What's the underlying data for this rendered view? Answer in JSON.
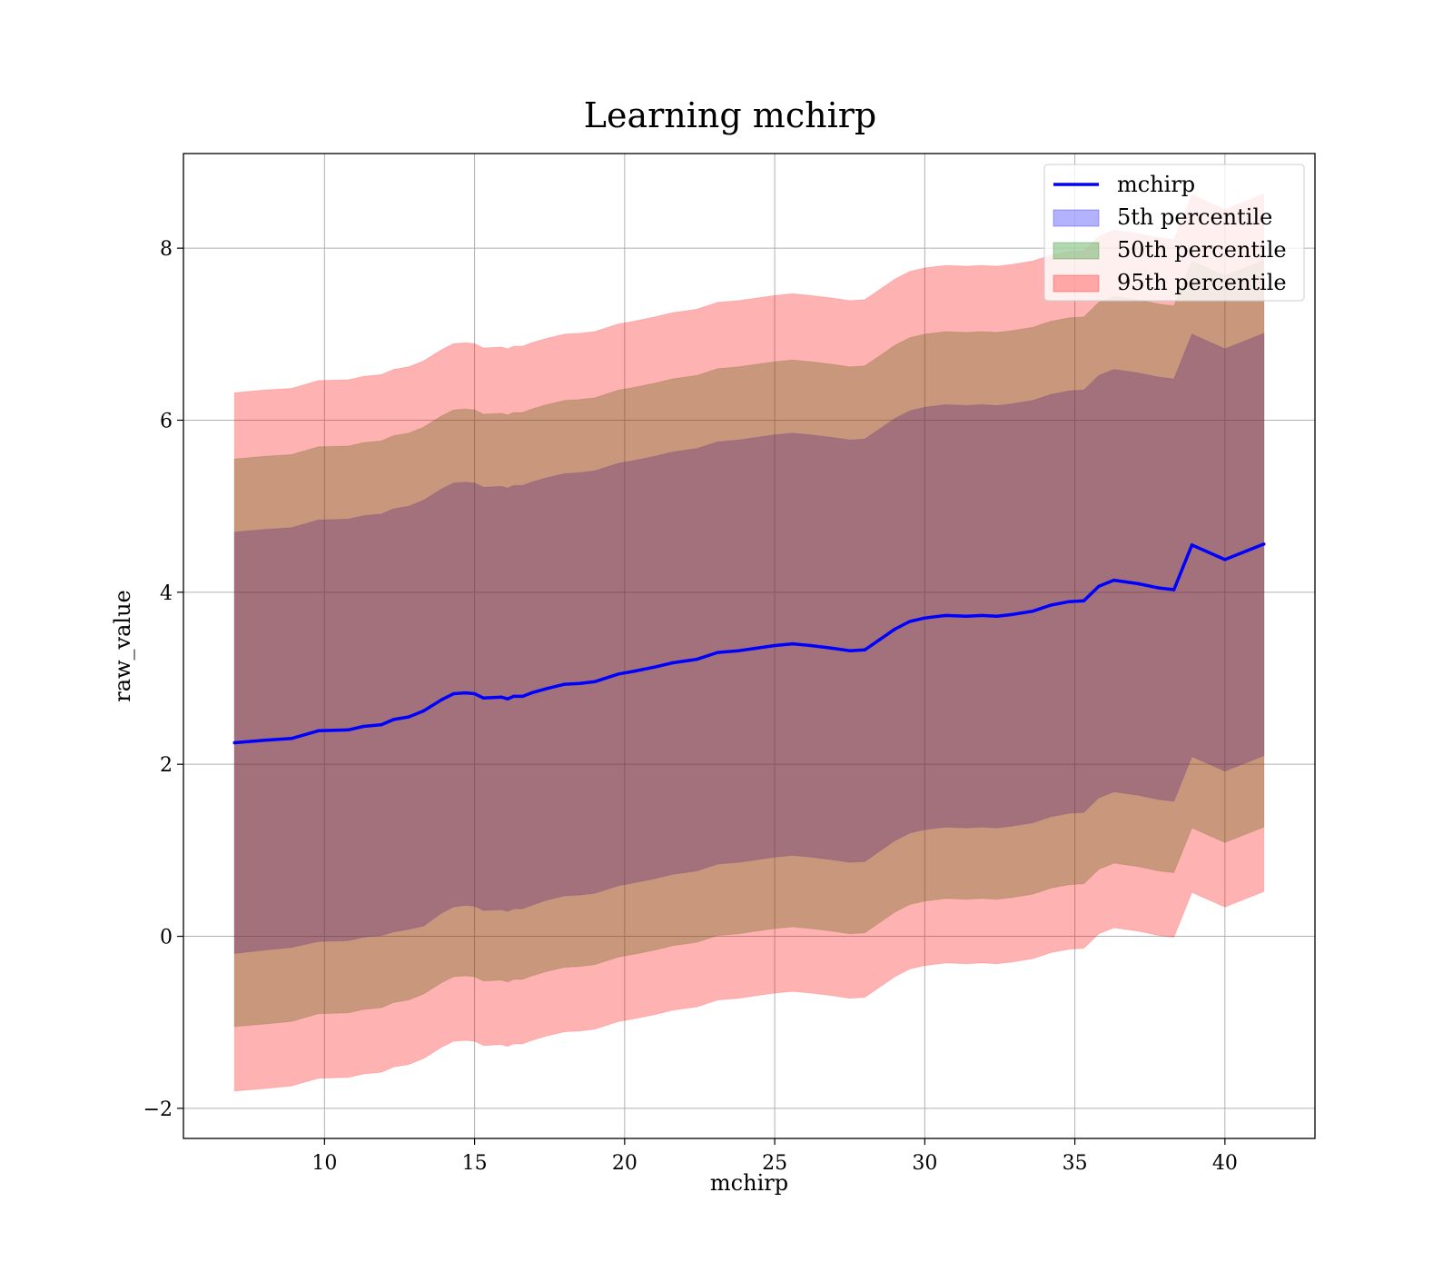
{
  "chart_data": {
    "type": "line",
    "title": "Learning mchirp",
    "xlabel": "mchirp",
    "ylabel": "raw_value",
    "xlim": [
      5.3,
      43.0
    ],
    "ylim": [
      -2.35,
      9.1
    ],
    "xticks": [
      10,
      15,
      20,
      25,
      30,
      35,
      40
    ],
    "yticks": [
      -2,
      0,
      2,
      4,
      6,
      8
    ],
    "xtick_labels": [
      "10",
      "15",
      "20",
      "25",
      "30",
      "35",
      "40"
    ],
    "ytick_labels": [
      "−2",
      "0",
      "2",
      "4",
      "6",
      "8"
    ],
    "grid": true,
    "legend_position": "top-right",
    "x": [
      7.0,
      8.0,
      8.9,
      9.8,
      10.8,
      11.3,
      11.9,
      12.3,
      12.8,
      13.3,
      13.9,
      14.3,
      14.7,
      15.0,
      15.3,
      15.9,
      16.1,
      16.3,
      16.6,
      16.9,
      17.4,
      18.0,
      18.5,
      19.0,
      19.8,
      20.3,
      21.0,
      21.6,
      22.4,
      23.1,
      23.8,
      24.4,
      25.0,
      25.6,
      26.2,
      26.9,
      27.5,
      28.0,
      28.5,
      29.0,
      29.5,
      30.0,
      30.7,
      31.4,
      31.9,
      32.4,
      32.9,
      33.6,
      34.2,
      34.8,
      35.3,
      35.8,
      36.3,
      37.1,
      37.8,
      38.3,
      38.9,
      40.0,
      41.3
    ],
    "series": [
      {
        "name": "mchirp",
        "role": "line",
        "color": "#0000ff",
        "values": [
          2.25,
          2.28,
          2.3,
          2.39,
          2.4,
          2.44,
          2.46,
          2.52,
          2.55,
          2.62,
          2.75,
          2.82,
          2.83,
          2.82,
          2.77,
          2.78,
          2.76,
          2.79,
          2.79,
          2.83,
          2.88,
          2.93,
          2.94,
          2.96,
          3.05,
          3.08,
          3.13,
          3.18,
          3.22,
          3.3,
          3.32,
          3.35,
          3.38,
          3.4,
          3.38,
          3.35,
          3.32,
          3.33,
          3.45,
          3.57,
          3.66,
          3.7,
          3.73,
          3.72,
          3.73,
          3.72,
          3.74,
          3.78,
          3.85,
          3.89,
          3.9,
          4.07,
          4.14,
          4.1,
          4.05,
          4.03,
          4.55,
          4.38,
          4.56
        ]
      },
      {
        "name": "5th percentile",
        "role": "band",
        "color": "#0000ff",
        "lower": [
          -0.2,
          -0.16,
          -0.13,
          -0.06,
          -0.05,
          -0.01,
          0.01,
          0.05,
          0.08,
          0.12,
          0.27,
          0.34,
          0.36,
          0.35,
          0.3,
          0.31,
          0.29,
          0.32,
          0.32,
          0.36,
          0.42,
          0.47,
          0.48,
          0.5,
          0.59,
          0.62,
          0.67,
          0.72,
          0.76,
          0.84,
          0.86,
          0.89,
          0.92,
          0.94,
          0.92,
          0.89,
          0.86,
          0.87,
          0.99,
          1.11,
          1.2,
          1.24,
          1.27,
          1.26,
          1.27,
          1.26,
          1.28,
          1.32,
          1.39,
          1.43,
          1.44,
          1.61,
          1.68,
          1.64,
          1.59,
          1.57,
          2.09,
          1.92,
          2.1
        ],
        "upper": [
          4.7,
          4.73,
          4.75,
          4.84,
          4.85,
          4.89,
          4.91,
          4.97,
          5.0,
          5.07,
          5.2,
          5.27,
          5.28,
          5.27,
          5.22,
          5.23,
          5.21,
          5.24,
          5.24,
          5.28,
          5.33,
          5.38,
          5.39,
          5.41,
          5.5,
          5.53,
          5.58,
          5.63,
          5.67,
          5.75,
          5.77,
          5.8,
          5.83,
          5.85,
          5.83,
          5.8,
          5.77,
          5.78,
          5.9,
          6.02,
          6.11,
          6.15,
          6.18,
          6.17,
          6.18,
          6.17,
          6.19,
          6.23,
          6.3,
          6.34,
          6.35,
          6.52,
          6.59,
          6.55,
          6.5,
          6.48,
          7.0,
          6.83,
          7.01
        ]
      },
      {
        "name": "50th percentile",
        "role": "band",
        "color": "#008000",
        "lower": [
          -1.05,
          -1.02,
          -0.99,
          -0.9,
          -0.89,
          -0.85,
          -0.83,
          -0.77,
          -0.74,
          -0.67,
          -0.54,
          -0.47,
          -0.46,
          -0.47,
          -0.52,
          -0.51,
          -0.53,
          -0.5,
          -0.5,
          -0.46,
          -0.41,
          -0.36,
          -0.35,
          -0.33,
          -0.24,
          -0.21,
          -0.16,
          -0.11,
          -0.07,
          0.01,
          0.03,
          0.06,
          0.09,
          0.11,
          0.09,
          0.06,
          0.03,
          0.04,
          0.16,
          0.28,
          0.37,
          0.41,
          0.44,
          0.43,
          0.44,
          0.43,
          0.45,
          0.49,
          0.56,
          0.6,
          0.61,
          0.78,
          0.85,
          0.81,
          0.76,
          0.74,
          1.26,
          1.09,
          1.27
        ],
        "upper": [
          5.55,
          5.58,
          5.6,
          5.69,
          5.7,
          5.74,
          5.76,
          5.82,
          5.85,
          5.92,
          6.05,
          6.12,
          6.13,
          6.12,
          6.07,
          6.08,
          6.06,
          6.09,
          6.09,
          6.13,
          6.18,
          6.23,
          6.24,
          6.26,
          6.35,
          6.38,
          6.43,
          6.48,
          6.52,
          6.6,
          6.62,
          6.65,
          6.68,
          6.7,
          6.68,
          6.65,
          6.62,
          6.63,
          6.75,
          6.87,
          6.96,
          7.0,
          7.03,
          7.02,
          7.03,
          7.02,
          7.04,
          7.08,
          7.15,
          7.19,
          7.2,
          7.37,
          7.44,
          7.4,
          7.35,
          7.33,
          7.85,
          7.68,
          7.86
        ]
      },
      {
        "name": "95th percentile",
        "role": "band",
        "color": "#ff0000",
        "lower": [
          -1.8,
          -1.77,
          -1.74,
          -1.65,
          -1.64,
          -1.6,
          -1.58,
          -1.52,
          -1.49,
          -1.42,
          -1.29,
          -1.22,
          -1.21,
          -1.22,
          -1.27,
          -1.26,
          -1.28,
          -1.25,
          -1.25,
          -1.21,
          -1.16,
          -1.11,
          -1.1,
          -1.08,
          -0.99,
          -0.96,
          -0.91,
          -0.86,
          -0.82,
          -0.74,
          -0.72,
          -0.69,
          -0.66,
          -0.64,
          -0.66,
          -0.69,
          -0.72,
          -0.71,
          -0.59,
          -0.47,
          -0.38,
          -0.34,
          -0.31,
          -0.32,
          -0.31,
          -0.32,
          -0.3,
          -0.26,
          -0.19,
          -0.15,
          -0.14,
          0.03,
          0.1,
          0.06,
          0.01,
          -0.01,
          0.51,
          0.34,
          0.52
        ],
        "upper": [
          6.32,
          6.35,
          6.37,
          6.46,
          6.47,
          6.51,
          6.53,
          6.59,
          6.62,
          6.69,
          6.82,
          6.89,
          6.9,
          6.89,
          6.84,
          6.85,
          6.83,
          6.86,
          6.86,
          6.9,
          6.95,
          7.0,
          7.01,
          7.03,
          7.12,
          7.15,
          7.2,
          7.25,
          7.29,
          7.37,
          7.39,
          7.42,
          7.45,
          7.47,
          7.45,
          7.42,
          7.39,
          7.4,
          7.52,
          7.64,
          7.73,
          7.77,
          7.8,
          7.79,
          7.8,
          7.79,
          7.81,
          7.85,
          7.92,
          7.96,
          7.97,
          8.14,
          8.21,
          8.17,
          8.12,
          8.1,
          8.62,
          8.45,
          8.63
        ]
      }
    ]
  }
}
